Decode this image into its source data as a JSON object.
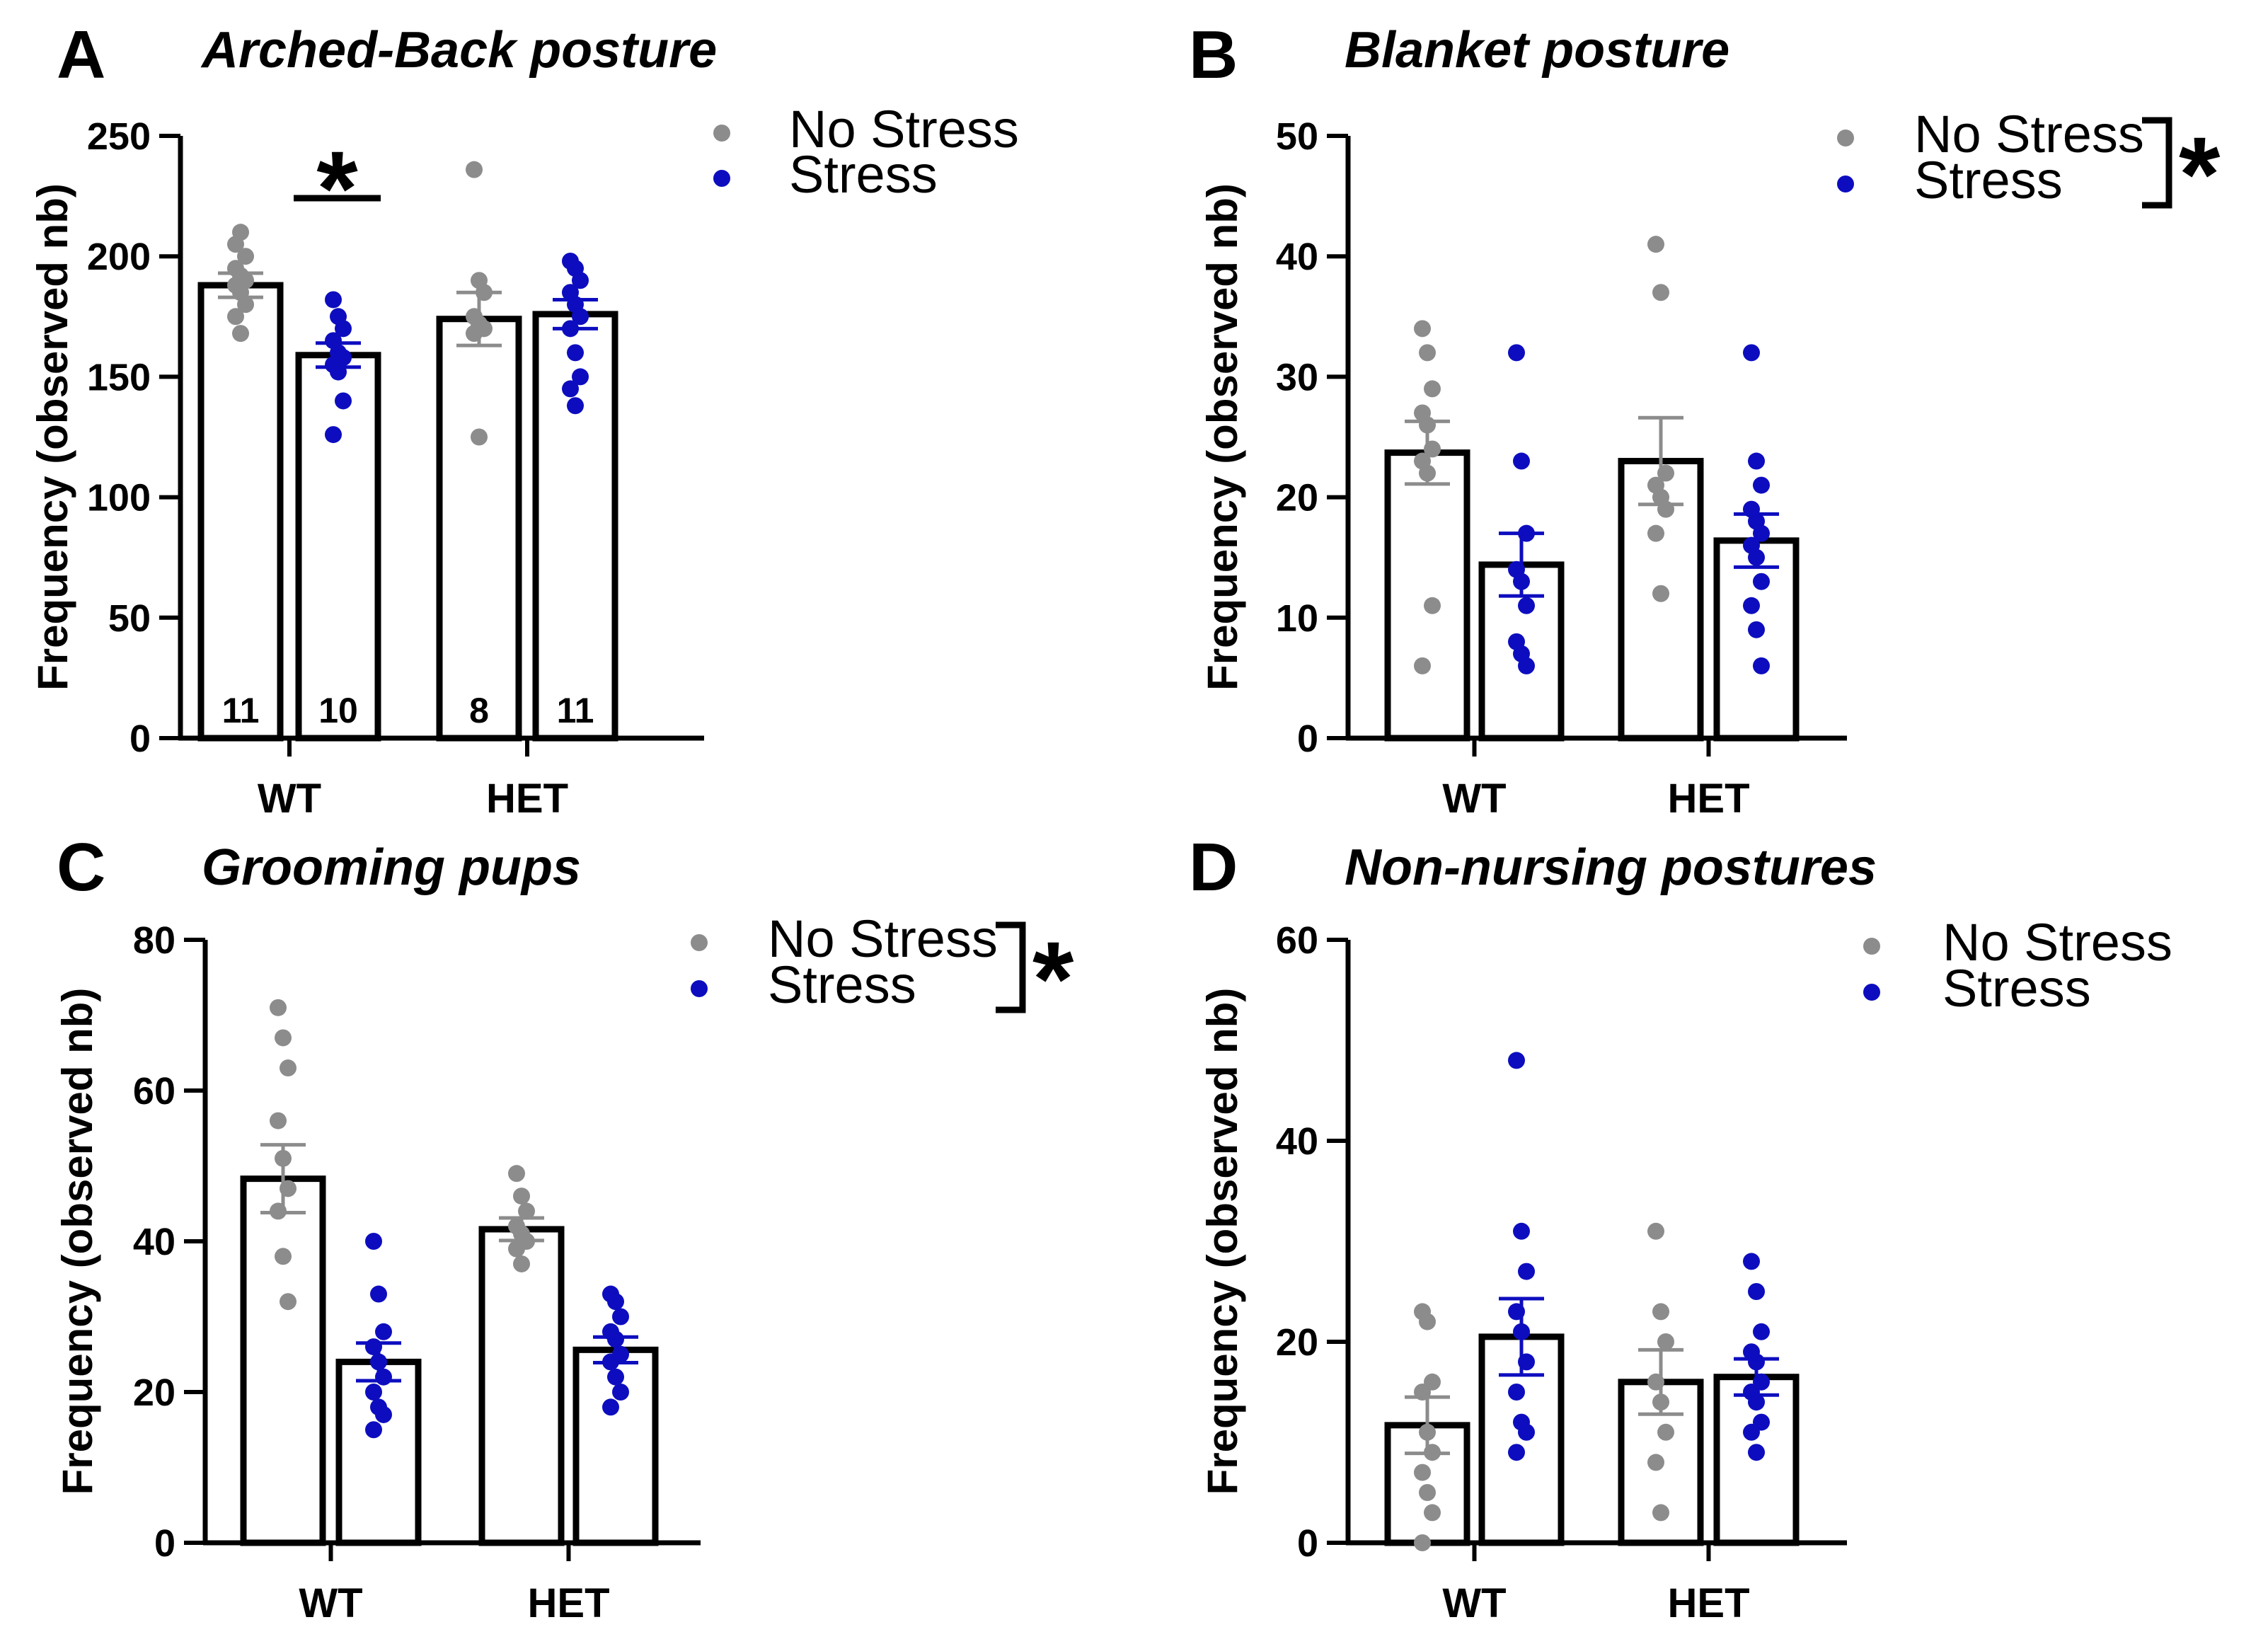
{
  "colors": {
    "no_stress": "#8c8c8c",
    "stress": "#0d0dbf",
    "bar_edge": "#000000"
  },
  "chart_data": [
    {
      "letter": "A",
      "type": "bar",
      "title": "Arched-Back posture",
      "ylabel": "Frequency (observed nb)",
      "ylim": [
        0,
        250
      ],
      "yticks": [
        "0",
        "50",
        "100",
        "150",
        "200",
        "250"
      ],
      "categories": [
        "WT",
        "HET"
      ],
      "legend": [
        "No Stress",
        "Stress"
      ],
      "series": [
        {
          "name": "No Stress",
          "means": [
            188,
            174
          ],
          "sem": [
            5,
            11
          ],
          "points": [
            [
              205,
              210,
              200,
              195,
              192,
              190,
              188,
              185,
              180,
              175,
              168
            ],
            [
              236,
              190,
              185,
              175,
              172,
              170,
              168,
              125
            ]
          ]
        },
        {
          "name": "Stress",
          "means": [
            159,
            176
          ],
          "sem": [
            5,
            6
          ],
          "points": [
            [
              182,
              175,
              170,
              165,
              160,
              158,
              155,
              152,
              140,
              126
            ],
            [
              198,
              195,
              190,
              185,
              180,
              175,
              170,
              160,
              150,
              145,
              138
            ]
          ]
        }
      ],
      "n_labels": [
        "11",
        "10",
        "8",
        "11"
      ],
      "significance": {
        "type": "pair",
        "category": 0,
        "label": "*"
      }
    },
    {
      "letter": "B",
      "type": "bar",
      "title": "Blanket posture",
      "ylabel": "Frequency (observed nb)",
      "ylim": [
        0,
        50
      ],
      "yticks": [
        "0",
        "10",
        "20",
        "30",
        "40",
        "50"
      ],
      "categories": [
        "WT",
        "HET"
      ],
      "legend": [
        "No Stress",
        "Stress"
      ],
      "series": [
        {
          "name": "No Stress",
          "means": [
            23.7,
            23
          ],
          "sem": [
            2.6,
            3.6
          ],
          "points": [
            [
              34,
              32,
              29,
              27,
              26,
              24,
              23,
              22,
              11,
              6
            ],
            [
              41,
              37,
              22,
              21,
              20,
              19,
              17,
              12
            ]
          ]
        },
        {
          "name": "Stress",
          "means": [
            14.4,
            16.4
          ],
          "sem": [
            2.6,
            2.2
          ],
          "points": [
            [
              32,
              23,
              17,
              14,
              13,
              11,
              8,
              7,
              6
            ],
            [
              32,
              23,
              21,
              19,
              18,
              17,
              16,
              15,
              13,
              11,
              9,
              6
            ]
          ]
        }
      ],
      "significance": {
        "type": "legend",
        "label": "*"
      }
    },
    {
      "letter": "C",
      "type": "bar",
      "title": "Grooming pups",
      "ylabel": "Frequency (observed nb)",
      "ylim": [
        0,
        80
      ],
      "yticks": [
        "0",
        "20",
        "40",
        "60",
        "80"
      ],
      "categories": [
        "WT",
        "HET"
      ],
      "legend": [
        "No Stress",
        "Stress"
      ],
      "series": [
        {
          "name": "No Stress",
          "means": [
            48.3,
            41.6
          ],
          "sem": [
            4.5,
            1.5
          ],
          "points": [
            [
              71,
              67,
              63,
              56,
              51,
              47,
              44,
              38,
              32
            ],
            [
              49,
              46,
              44,
              42,
              41,
              40,
              39,
              37
            ]
          ]
        },
        {
          "name": "Stress",
          "means": [
            24,
            25.6
          ],
          "sem": [
            2.5,
            1.7
          ],
          "points": [
            [
              40,
              33,
              28,
              26,
              24,
              22,
              20,
              18,
              17,
              15
            ],
            [
              33,
              32,
              30,
              28,
              27,
              25,
              24,
              22,
              20,
              18
            ]
          ]
        }
      ],
      "significance": {
        "type": "legend",
        "label": "*"
      }
    },
    {
      "letter": "D",
      "type": "bar",
      "title": "Non-nursing postures",
      "ylabel": "Frequency (observed nb)",
      "ylim": [
        0,
        60
      ],
      "yticks": [
        "0",
        "20",
        "40",
        "60"
      ],
      "categories": [
        "WT",
        "HET"
      ],
      "legend": [
        "No Stress",
        "Stress"
      ],
      "series": [
        {
          "name": "No Stress",
          "means": [
            11.7,
            16
          ],
          "sem": [
            2.8,
            3.2
          ],
          "points": [
            [
              23,
              22,
              16,
              15,
              11,
              9,
              7,
              5,
              3,
              0
            ],
            [
              31,
              23,
              20,
              16,
              14,
              11,
              8,
              3
            ]
          ]
        },
        {
          "name": "Stress",
          "means": [
            20.5,
            16.5
          ],
          "sem": [
            3.8,
            1.8
          ],
          "points": [
            [
              48,
              31,
              27,
              23,
              21,
              18,
              15,
              12,
              11,
              9
            ],
            [
              28,
              25,
              21,
              19,
              18,
              16,
              15,
              14,
              12,
              11,
              9
            ]
          ]
        }
      ]
    }
  ]
}
